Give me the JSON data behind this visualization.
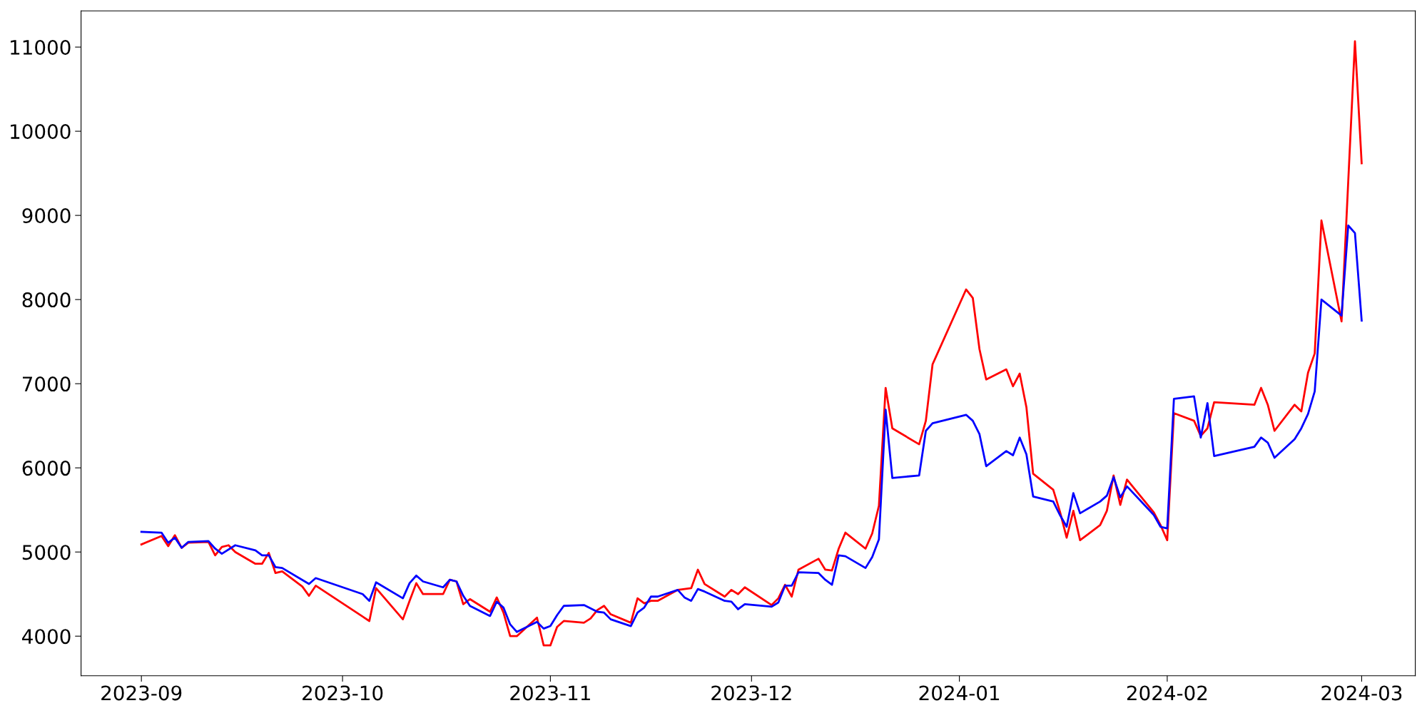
{
  "chart_data": {
    "type": "line",
    "xlim": [
      "2023-08-23",
      "2024-03-09"
    ],
    "ylim": [
      3530,
      11430
    ],
    "xticks": [
      {
        "value": "2023-09-01",
        "label": "2023-09"
      },
      {
        "value": "2023-10-01",
        "label": "2023-10"
      },
      {
        "value": "2023-11-01",
        "label": "2023-11"
      },
      {
        "value": "2023-12-01",
        "label": "2023-12"
      },
      {
        "value": "2024-01-01",
        "label": "2024-01"
      },
      {
        "value": "2024-02-01",
        "label": "2024-02"
      },
      {
        "value": "2024-03-01",
        "label": "2024-03"
      }
    ],
    "yticks": [
      4000,
      5000,
      6000,
      7000,
      8000,
      9000,
      10000,
      11000
    ],
    "grid": false,
    "legend": false,
    "series": [
      {
        "color": "#ff0000",
        "x": [
          "2023-09-01",
          "2023-09-04",
          "2023-09-05",
          "2023-09-06",
          "2023-09-07",
          "2023-09-08",
          "2023-09-11",
          "2023-09-12",
          "2023-09-13",
          "2023-09-14",
          "2023-09-15",
          "2023-09-18",
          "2023-09-19",
          "2023-09-20",
          "2023-09-21",
          "2023-09-22",
          "2023-09-25",
          "2023-09-26",
          "2023-09-27",
          "2023-10-05",
          "2023-10-06",
          "2023-10-10",
          "2023-10-11",
          "2023-10-12",
          "2023-10-13",
          "2023-10-16",
          "2023-10-17",
          "2023-10-18",
          "2023-10-19",
          "2023-10-20",
          "2023-10-23",
          "2023-10-24",
          "2023-10-25",
          "2023-10-26",
          "2023-10-27",
          "2023-10-30",
          "2023-10-31",
          "2023-11-01",
          "2023-11-02",
          "2023-11-03",
          "2023-11-06",
          "2023-11-07",
          "2023-11-08",
          "2023-11-09",
          "2023-11-10",
          "2023-11-13",
          "2023-11-14",
          "2023-11-15",
          "2023-11-16",
          "2023-11-17",
          "2023-11-20",
          "2023-11-22",
          "2023-11-23",
          "2023-11-24",
          "2023-11-27",
          "2023-11-28",
          "2023-11-29",
          "2023-11-30",
          "2023-12-04",
          "2023-12-05",
          "2023-12-06",
          "2023-12-07",
          "2023-12-08",
          "2023-12-11",
          "2023-12-12",
          "2023-12-13",
          "2023-12-14",
          "2023-12-15",
          "2023-12-18",
          "2023-12-19",
          "2023-12-20",
          "2023-12-21",
          "2023-12-22",
          "2023-12-26",
          "2023-12-27",
          "2023-12-28",
          "2024-01-02",
          "2024-01-03",
          "2024-01-04",
          "2024-01-05",
          "2024-01-08",
          "2024-01-09",
          "2024-01-10",
          "2024-01-11",
          "2024-01-12",
          "2024-01-15",
          "2024-01-16",
          "2024-01-17",
          "2024-01-18",
          "2024-01-19",
          "2024-01-22",
          "2024-01-23",
          "2024-01-24",
          "2024-01-25",
          "2024-01-26",
          "2024-01-30",
          "2024-01-31",
          "2024-02-01",
          "2024-02-02",
          "2024-02-05",
          "2024-02-06",
          "2024-02-07",
          "2024-02-08",
          "2024-02-14",
          "2024-02-15",
          "2024-02-16",
          "2024-02-17",
          "2024-02-20",
          "2024-02-21",
          "2024-02-22",
          "2024-02-23",
          "2024-02-24",
          "2024-02-27",
          "2024-02-29",
          "2024-03-01"
        ],
        "values": [
          5090,
          5190,
          5070,
          5200,
          5050,
          5110,
          5120,
          4960,
          5060,
          5080,
          5000,
          4860,
          4860,
          4990,
          4750,
          4770,
          4590,
          4480,
          4600,
          4180,
          4570,
          4200,
          4420,
          4630,
          4500,
          4500,
          4670,
          4650,
          4380,
          4440,
          4290,
          4460,
          4280,
          4000,
          4000,
          4220,
          3890,
          3890,
          4110,
          4180,
          4160,
          4210,
          4310,
          4360,
          4260,
          4160,
          4450,
          4390,
          4420,
          4420,
          4550,
          4570,
          4790,
          4620,
          4470,
          4550,
          4500,
          4580,
          4370,
          4450,
          4610,
          4470,
          4790,
          4920,
          4790,
          4780,
          5040,
          5230,
          5040,
          5220,
          5550,
          6950,
          6470,
          6280,
          6560,
          7230,
          8120,
          8020,
          7410,
          7050,
          7170,
          6970,
          7120,
          6720,
          5930,
          5740,
          5480,
          5170,
          5490,
          5140,
          5320,
          5490,
          5910,
          5560,
          5860,
          5470,
          5320,
          5140,
          6650,
          6560,
          6380,
          6470,
          6780,
          6750,
          6950,
          6750,
          6440,
          6750,
          6670,
          7130,
          7360,
          8940,
          7740,
          11070,
          9620
        ]
      },
      {
        "color": "#0000ff",
        "x": [
          "2023-09-01",
          "2023-09-04",
          "2023-09-05",
          "2023-09-06",
          "2023-09-07",
          "2023-09-08",
          "2023-09-11",
          "2023-09-12",
          "2023-09-13",
          "2023-09-15",
          "2023-09-18",
          "2023-09-19",
          "2023-09-20",
          "2023-09-21",
          "2023-09-22",
          "2023-09-26",
          "2023-09-27",
          "2023-10-04",
          "2023-10-05",
          "2023-10-06",
          "2023-10-10",
          "2023-10-11",
          "2023-10-12",
          "2023-10-13",
          "2023-10-16",
          "2023-10-17",
          "2023-10-18",
          "2023-10-19",
          "2023-10-20",
          "2023-10-23",
          "2023-10-24",
          "2023-10-25",
          "2023-10-26",
          "2023-10-27",
          "2023-10-30",
          "2023-10-31",
          "2023-11-01",
          "2023-11-02",
          "2023-11-03",
          "2023-11-06",
          "2023-11-08",
          "2023-11-09",
          "2023-11-10",
          "2023-11-13",
          "2023-11-14",
          "2023-11-15",
          "2023-11-16",
          "2023-11-17",
          "2023-11-20",
          "2023-11-21",
          "2023-11-22",
          "2023-11-23",
          "2023-11-24",
          "2023-11-27",
          "2023-11-28",
          "2023-11-29",
          "2023-11-30",
          "2023-12-04",
          "2023-12-05",
          "2023-12-06",
          "2023-12-07",
          "2023-12-08",
          "2023-12-11",
          "2023-12-12",
          "2023-12-13",
          "2023-12-14",
          "2023-12-15",
          "2023-12-18",
          "2023-12-19",
          "2023-12-20",
          "2023-12-21",
          "2023-12-22",
          "2023-12-26",
          "2023-12-27",
          "2023-12-28",
          "2024-01-02",
          "2024-01-03",
          "2024-01-04",
          "2024-01-05",
          "2024-01-08",
          "2024-01-09",
          "2024-01-10",
          "2024-01-11",
          "2024-01-12",
          "2024-01-15",
          "2024-01-16",
          "2024-01-17",
          "2024-01-18",
          "2024-01-19",
          "2024-01-22",
          "2024-01-23",
          "2024-01-24",
          "2024-01-25",
          "2024-01-26",
          "2024-01-30",
          "2024-01-31",
          "2024-02-01",
          "2024-02-02",
          "2024-02-05",
          "2024-02-06",
          "2024-02-07",
          "2024-02-08",
          "2024-02-14",
          "2024-02-15",
          "2024-02-16",
          "2024-02-17",
          "2024-02-20",
          "2024-02-21",
          "2024-02-22",
          "2024-02-23",
          "2024-02-24",
          "2024-02-27",
          "2024-02-28",
          "2024-02-29",
          "2024-03-01"
        ],
        "values": [
          5240,
          5230,
          5110,
          5170,
          5050,
          5120,
          5130,
          5040,
          4980,
          5080,
          5020,
          4960,
          4960,
          4820,
          4810,
          4620,
          4690,
          4500,
          4420,
          4640,
          4450,
          4630,
          4720,
          4650,
          4580,
          4670,
          4650,
          4480,
          4360,
          4240,
          4410,
          4340,
          4140,
          4050,
          4170,
          4090,
          4120,
          4250,
          4360,
          4370,
          4290,
          4280,
          4200,
          4120,
          4280,
          4340,
          4470,
          4470,
          4550,
          4460,
          4420,
          4560,
          4530,
          4420,
          4410,
          4320,
          4380,
          4350,
          4400,
          4600,
          4600,
          4760,
          4750,
          4670,
          4610,
          4960,
          4950,
          4810,
          4940,
          5150,
          6690,
          5880,
          5910,
          6440,
          6530,
          6630,
          6560,
          6400,
          6020,
          6200,
          6150,
          6360,
          6160,
          5660,
          5600,
          5440,
          5300,
          5700,
          5460,
          5600,
          5670,
          5890,
          5650,
          5780,
          5440,
          5300,
          5280,
          6820,
          6850,
          6360,
          6770,
          6140,
          6250,
          6360,
          6300,
          6120,
          6340,
          6470,
          6640,
          6910,
          8000,
          7810,
          8880,
          8790,
          7750
        ]
      }
    ]
  }
}
